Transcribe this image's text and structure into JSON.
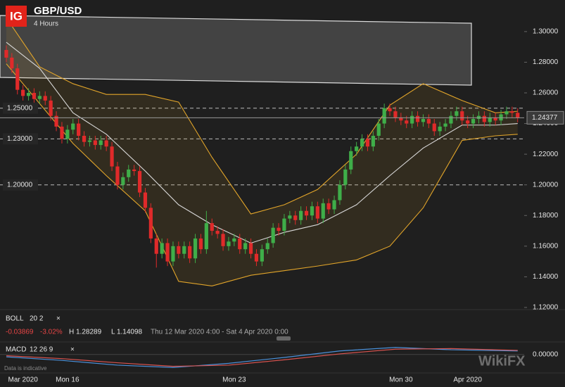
{
  "header": {
    "logo": "IG",
    "symbol": "GBP/USD",
    "interval": "4 Hours"
  },
  "chart_data": {
    "type": "candlestick",
    "categories": [
      null,
      null,
      null,
      "Mar 2020",
      null,
      null,
      null,
      null,
      null,
      null,
      null,
      "Mon 16",
      null,
      null,
      null,
      null,
      null,
      null,
      null,
      null,
      null,
      null,
      null,
      null,
      null,
      null,
      null,
      null,
      null,
      null,
      null,
      null,
      null,
      null,
      null,
      null,
      null,
      null,
      null,
      null,
      null,
      "Mon 23",
      null,
      null,
      null,
      null,
      null,
      null,
      null,
      null,
      null,
      null,
      null,
      null,
      null,
      null,
      null,
      null,
      null,
      null,
      null,
      null,
      null,
      null,
      null,
      null,
      null,
      null,
      null,
      null,
      null,
      "Mon 30",
      null,
      null,
      null,
      null,
      null,
      null,
      null,
      null,
      null,
      null,
      null,
      "Apr 2020",
      null,
      null,
      null,
      null,
      null,
      null,
      null,
      null,
      null
    ],
    "open": [
      1.288,
      1.283,
      1.276,
      1.262,
      1.258,
      1.26,
      1.256,
      1.258,
      1.255,
      1.245,
      1.238,
      1.23,
      1.236,
      1.24,
      1.232,
      1.228,
      1.229,
      1.226,
      1.229,
      1.225,
      1.212,
      1.2,
      1.205,
      1.21,
      1.209,
      1.195,
      1.185,
      1.165,
      1.155,
      1.162,
      1.15,
      1.16,
      1.155,
      1.16,
      1.152,
      1.165,
      1.158,
      1.175,
      1.17,
      1.168,
      1.16,
      1.163,
      1.165,
      1.158,
      1.162,
      1.155,
      1.15,
      1.158,
      1.162,
      1.172,
      1.17,
      1.178,
      1.18,
      1.177,
      1.183,
      1.18,
      1.186,
      1.178,
      1.188,
      1.184,
      1.19,
      1.2,
      1.21,
      1.222,
      1.225,
      1.23,
      1.225,
      1.232,
      1.24,
      1.25,
      1.248,
      1.244,
      1.242,
      1.24,
      1.245,
      1.241,
      1.243,
      1.24,
      1.235,
      1.238,
      1.24,
      1.245,
      1.248,
      1.242,
      1.24,
      1.243,
      1.245,
      1.241,
      1.244,
      1.242,
      1.246,
      1.248,
      1.247
    ],
    "high": [
      1.291,
      1.286,
      1.279,
      1.265,
      1.263,
      1.263,
      1.261,
      1.261,
      1.258,
      1.248,
      1.241,
      1.239,
      1.243,
      1.243,
      1.235,
      1.232,
      1.232,
      1.232,
      1.232,
      1.228,
      1.215,
      1.208,
      1.213,
      1.213,
      1.212,
      1.198,
      1.188,
      1.168,
      1.165,
      1.165,
      1.163,
      1.163,
      1.163,
      1.163,
      1.168,
      1.168,
      1.183,
      1.178,
      1.173,
      1.171,
      1.166,
      1.168,
      1.168,
      1.165,
      1.165,
      1.158,
      1.161,
      1.165,
      1.175,
      1.175,
      1.181,
      1.183,
      1.183,
      1.186,
      1.186,
      1.189,
      1.189,
      1.191,
      1.191,
      1.193,
      1.203,
      1.213,
      1.225,
      1.228,
      1.233,
      1.233,
      1.235,
      1.243,
      1.253,
      1.253,
      1.251,
      1.247,
      1.245,
      1.248,
      1.248,
      1.246,
      1.246,
      1.243,
      1.241,
      1.243,
      1.248,
      1.251,
      1.251,
      1.245,
      1.246,
      1.248,
      1.248,
      1.247,
      1.247,
      1.249,
      1.251,
      1.251,
      1.25
    ],
    "low": [
      1.28,
      1.273,
      1.259,
      1.255,
      1.255,
      1.253,
      1.253,
      1.252,
      1.242,
      1.235,
      1.227,
      1.227,
      1.233,
      1.229,
      1.225,
      1.225,
      1.223,
      1.223,
      1.222,
      1.209,
      1.197,
      1.197,
      1.202,
      1.206,
      1.192,
      1.182,
      1.162,
      1.146,
      1.152,
      1.147,
      1.147,
      1.152,
      1.152,
      1.149,
      1.149,
      1.155,
      1.155,
      1.167,
      1.165,
      1.157,
      1.157,
      1.16,
      1.155,
      1.155,
      1.152,
      1.147,
      1.147,
      1.155,
      1.159,
      1.167,
      1.167,
      1.175,
      1.174,
      1.174,
      1.177,
      1.177,
      1.175,
      1.175,
      1.181,
      1.181,
      1.187,
      1.197,
      1.207,
      1.219,
      1.222,
      1.222,
      1.222,
      1.229,
      1.237,
      1.245,
      1.241,
      1.239,
      1.237,
      1.237,
      1.238,
      1.238,
      1.237,
      1.232,
      1.232,
      1.235,
      1.237,
      1.242,
      1.239,
      1.237,
      1.237,
      1.24,
      1.238,
      1.238,
      1.239,
      1.239,
      1.243,
      1.244,
      1.2408
    ],
    "close": [
      1.283,
      1.276,
      1.262,
      1.258,
      1.26,
      1.256,
      1.258,
      1.255,
      1.245,
      1.238,
      1.23,
      1.236,
      1.24,
      1.232,
      1.228,
      1.229,
      1.226,
      1.229,
      1.225,
      1.212,
      1.2,
      1.205,
      1.21,
      1.209,
      1.195,
      1.185,
      1.165,
      1.155,
      1.162,
      1.15,
      1.16,
      1.155,
      1.16,
      1.152,
      1.165,
      1.158,
      1.175,
      1.17,
      1.168,
      1.16,
      1.163,
      1.165,
      1.158,
      1.162,
      1.155,
      1.15,
      1.158,
      1.162,
      1.172,
      1.17,
      1.178,
      1.18,
      1.177,
      1.183,
      1.18,
      1.186,
      1.178,
      1.188,
      1.184,
      1.19,
      1.2,
      1.21,
      1.222,
      1.225,
      1.23,
      1.225,
      1.232,
      1.24,
      1.25,
      1.248,
      1.244,
      1.242,
      1.24,
      1.245,
      1.241,
      1.243,
      1.24,
      1.235,
      1.238,
      1.24,
      1.245,
      1.248,
      1.242,
      1.24,
      1.243,
      1.245,
      1.241,
      1.244,
      1.242,
      1.246,
      1.248,
      1.247,
      1.2438
    ],
    "up_color": "#3fae49",
    "down_color": "#e02a2a",
    "bollinger": {
      "x": [
        0,
        6,
        12,
        18,
        25,
        31,
        37,
        44,
        50,
        56,
        63,
        69,
        75,
        82,
        88,
        92
      ],
      "upper": [
        1.309,
        1.277,
        1.266,
        1.259,
        1.259,
        1.254,
        1.218,
        1.181,
        1.187,
        1.197,
        1.22,
        1.252,
        1.266,
        1.255,
        1.247,
        1.248
      ],
      "middle": [
        1.293,
        1.276,
        1.247,
        1.233,
        1.209,
        1.187,
        1.174,
        1.162,
        1.169,
        1.174,
        1.187,
        1.206,
        1.224,
        1.239,
        1.239,
        1.24
      ],
      "lower": [
        1.279,
        1.253,
        1.227,
        1.206,
        1.183,
        1.137,
        1.134,
        1.141,
        1.144,
        1.147,
        1.151,
        1.16,
        1.185,
        1.229,
        1.232,
        1.233
      ],
      "band_color": "#e2a52a",
      "middle_color": "#d8d8d8"
    },
    "ylim": [
      1.1186,
      1.3206
    ],
    "yticks": [
      {
        "value": 1.3,
        "label": "1.30000"
      },
      {
        "value": 1.28,
        "label": "1.28000"
      },
      {
        "value": 1.26,
        "label": "1.26000"
      },
      {
        "value": 1.24,
        "label": "1.24000"
      },
      {
        "value": 1.22,
        "label": "1.22000"
      },
      {
        "value": 1.2,
        "label": "1.20000"
      },
      {
        "value": 1.18,
        "label": "1.18000"
      },
      {
        "value": 1.16,
        "label": "1.16000"
      },
      {
        "value": 1.14,
        "label": "1.14000"
      },
      {
        "value": 1.12,
        "label": "1.12000"
      }
    ],
    "levels": [
      {
        "value": 1.25,
        "label": "1.25000"
      },
      {
        "value": 1.23,
        "label": "1.23000"
      },
      {
        "value": 1.2,
        "label": "1.20000"
      }
    ],
    "last_price": {
      "value": 1.24377,
      "label": "1.24377"
    }
  },
  "boll_panel": {
    "name": "BOLL",
    "params": "20  2",
    "close_icon": "×",
    "change": "-0.03869",
    "change_pct": "-3.02%",
    "high": "H 1.28289",
    "low": "L 1.14098",
    "range": "Thu 12 Mar 2020 4:00 - Sat 4 Apr 2020 0:00"
  },
  "macd_panel": {
    "name": "MACD",
    "params": "12  26  9",
    "close_icon": "×",
    "x": [
      0,
      10,
      20,
      30,
      40,
      50,
      60,
      70,
      80,
      92
    ],
    "macd": [
      -0.004,
      -0.01,
      -0.018,
      -0.022,
      -0.015,
      -0.005,
      0.006,
      0.012,
      0.008,
      0.006
    ],
    "signal": [
      -0.002,
      -0.007,
      -0.014,
      -0.02,
      -0.018,
      -0.009,
      0.001,
      0.009,
      0.01,
      0.007
    ],
    "macd_color": "#4a90d9",
    "signal_color": "#d9534f",
    "ylim": [
      -0.03,
      0.02
    ],
    "yticks": [
      {
        "value": 0,
        "label": "0.00000"
      }
    ]
  },
  "footer": {
    "note": "Data is indicative",
    "watermark": "WikiFX"
  }
}
